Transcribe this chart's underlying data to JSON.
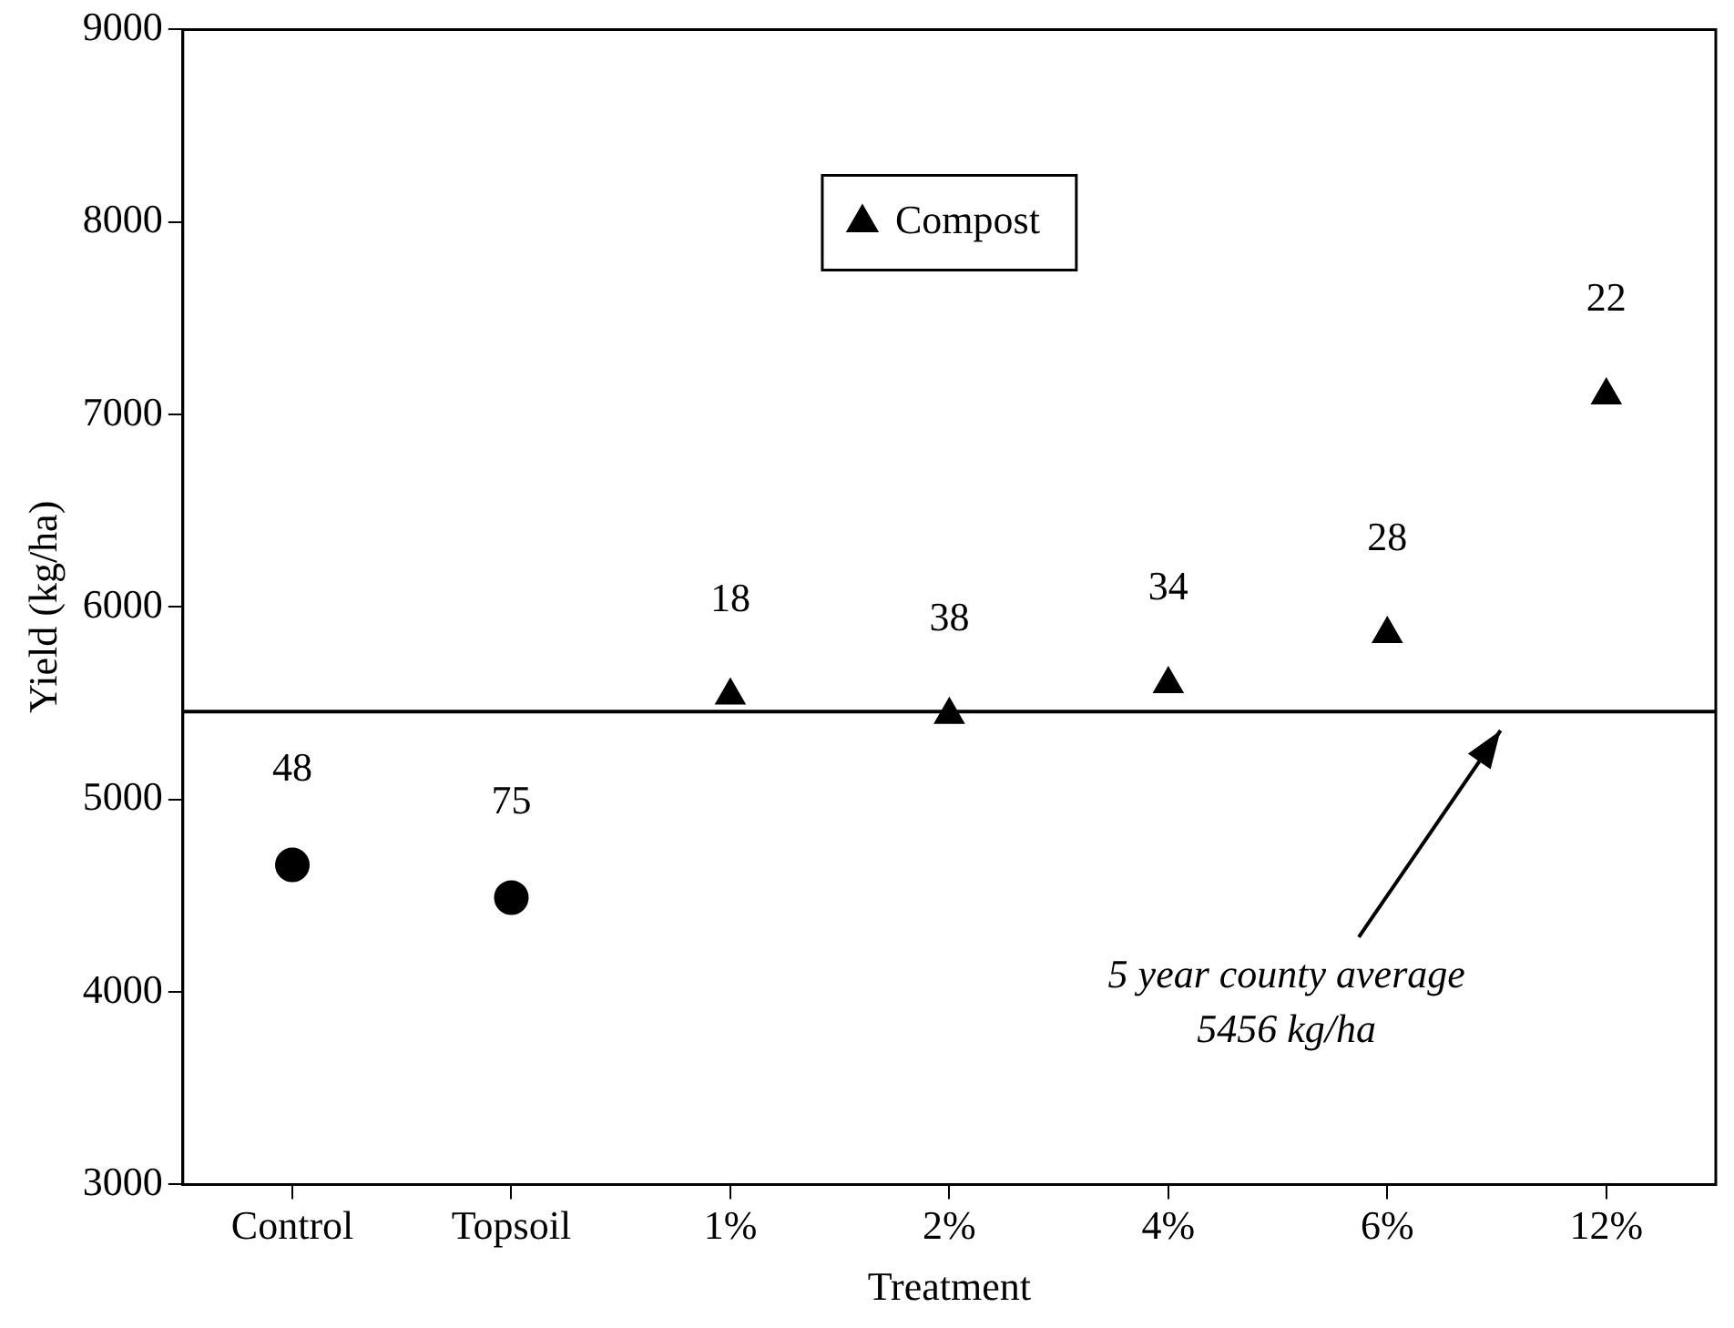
{
  "chart_data": {
    "type": "scatter",
    "xlabel": "Treatment",
    "ylabel": "Yield (kg/ha)",
    "categories": [
      "Control",
      "Topsoil",
      "1%",
      "2%",
      "4%",
      "6%",
      "12%"
    ],
    "series": [
      {
        "color": "#000000",
        "marker": "circle",
        "values": [
          4660,
          4490,
          null,
          null,
          null,
          null,
          null
        ]
      },
      {
        "name": "Compost",
        "color": "#000000",
        "marker": "triangle",
        "values": [
          null,
          null,
          5540,
          5440,
          5600,
          5860,
          7100
        ]
      }
    ],
    "ylim": [
      3000,
      9000
    ],
    "yticks": [
      3000,
      4000,
      5000,
      6000,
      7000,
      8000,
      9000
    ],
    "grid": false,
    "legend": "top",
    "ref_lines": [
      {
        "axis": "y",
        "value": 5456,
        "color": "#000000"
      }
    ],
    "annotations": [
      "5 year county average\n5456 kg/ha",
      {
        "text": "48",
        "x": "Control",
        "y": 4660
      },
      {
        "text": "75",
        "x": "Topsoil",
        "y": 4490
      },
      {
        "text": "18",
        "x": "1%",
        "y": 5540
      },
      {
        "text": "38",
        "x": "2%",
        "y": 5440
      },
      {
        "text": "34",
        "x": "4%",
        "y": 5600
      },
      {
        "text": "28",
        "x": "6%",
        "y": 5860
      },
      {
        "text": "22",
        "x": "12%",
        "y": 7100
      }
    ]
  }
}
